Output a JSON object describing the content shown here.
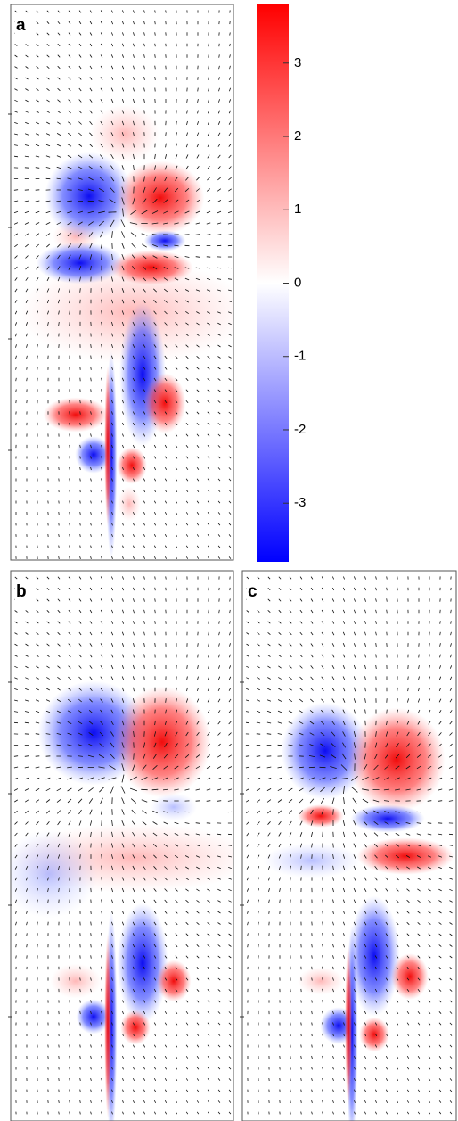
{
  "chart_data": {
    "type": "heatmap",
    "panels": [
      "a",
      "b",
      "c"
    ],
    "colorbar": {
      "ylim": [
        -3.8,
        3.8
      ],
      "yticks": [
        -3,
        -2,
        -1,
        0,
        1,
        2,
        3
      ],
      "colors": [
        "#0000ff",
        "#ffffff",
        "#ff0000"
      ]
    }
  }
}
